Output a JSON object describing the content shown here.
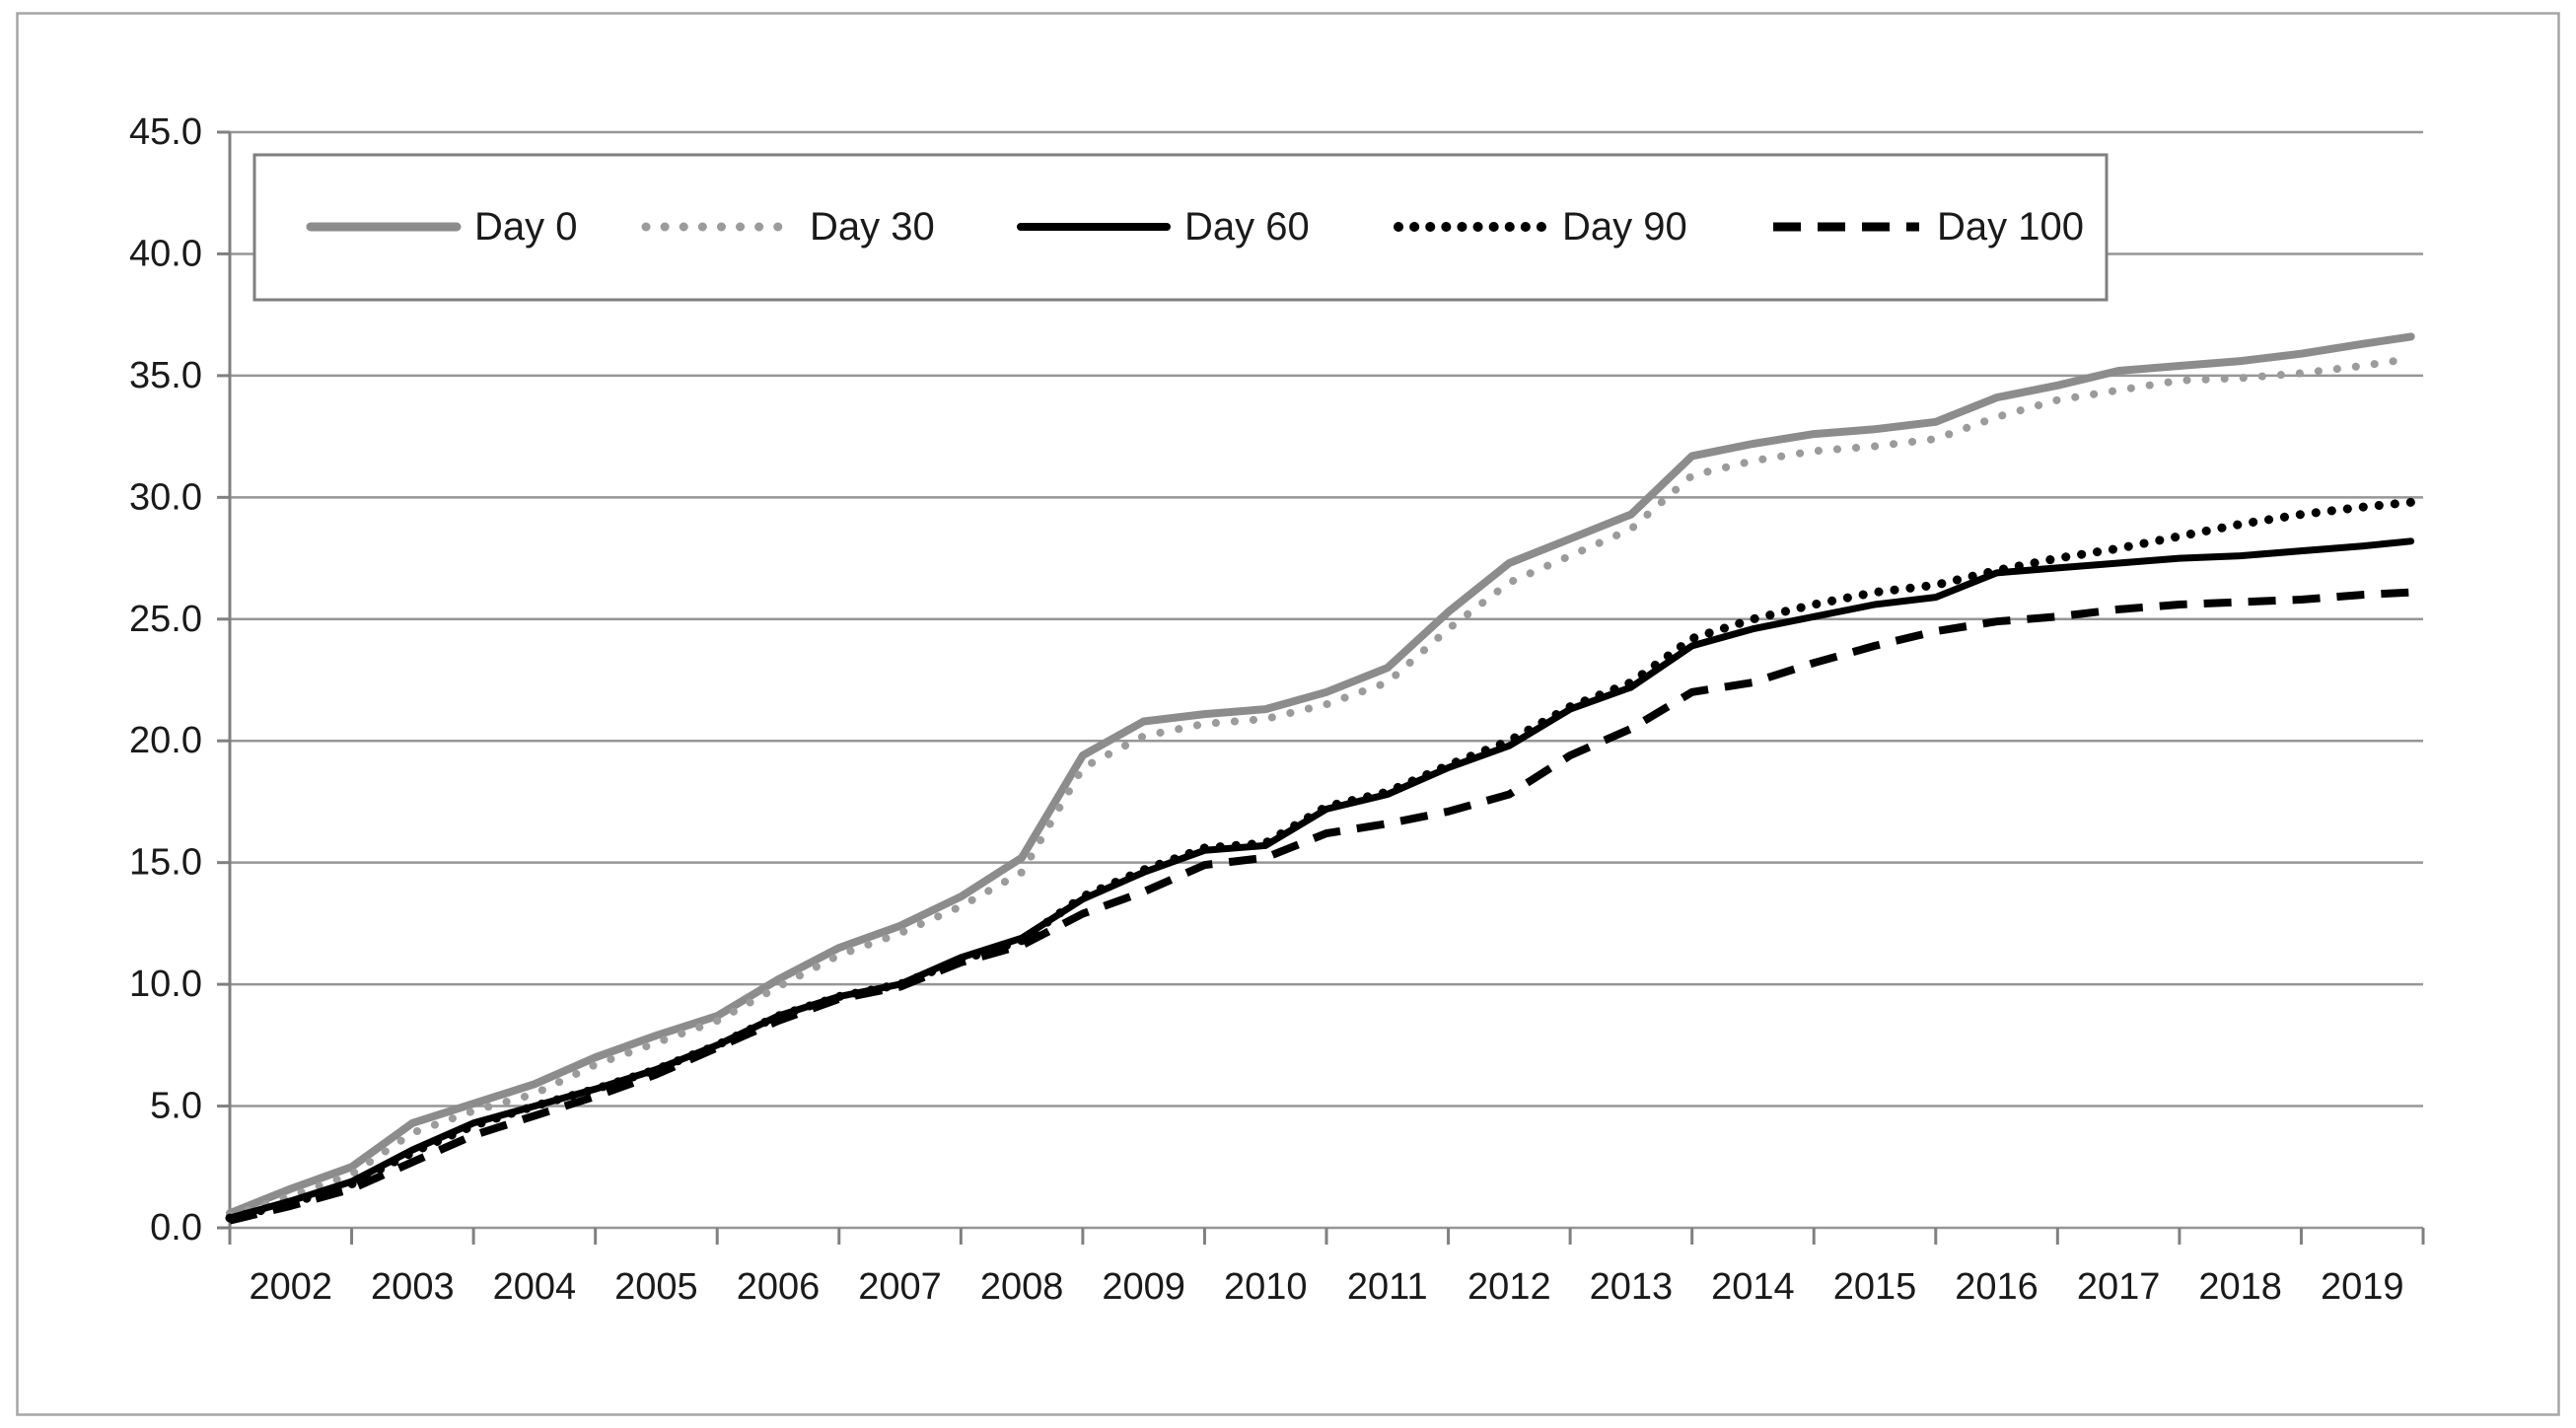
{
  "figure": {
    "background_color": "#ffffff",
    "border_color": "#a6a6a6",
    "gridline_color": "#969696",
    "axis_color": "#808080",
    "text_color": "#1a1a1a"
  },
  "legend": {
    "position": "top",
    "border_color": "#7f7f7f",
    "items": [
      {
        "label": "Day 0"
      },
      {
        "label": "Day 30"
      },
      {
        "label": "Day 60"
      },
      {
        "label": "Day 90"
      },
      {
        "label": "Day 100"
      }
    ]
  },
  "chart_data": {
    "type": "line",
    "title": "",
    "xlabel": "",
    "ylabel": "",
    "grid": "horizontal",
    "legend_position": "top",
    "ylim": [
      0,
      45
    ],
    "y_tick_step": 5,
    "y_tick_labels": [
      "0.0",
      "5.0",
      "10.0",
      "15.0",
      "20.0",
      "25.0",
      "30.0",
      "35.0",
      "40.0",
      "45.0"
    ],
    "x_tick_labels": [
      "2002",
      "2003",
      "2004",
      "2005",
      "2006",
      "2007",
      "2008",
      "2009",
      "2010",
      "2011",
      "2012",
      "2013",
      "2014",
      "2015",
      "2016",
      "2017",
      "2018",
      "2019"
    ],
    "xlim": [
      2002,
      2020
    ],
    "x": [
      2002,
      2002.5,
      2003,
      2003.5,
      2004,
      2004.5,
      2005,
      2005.5,
      2006,
      2006.5,
      2007,
      2007.5,
      2008,
      2008.5,
      2009,
      2009.5,
      2010,
      2010.5,
      2011,
      2011.5,
      2012,
      2012.5,
      2013,
      2013.5,
      2014,
      2014.5,
      2015,
      2015.5,
      2016,
      2016.5,
      2017,
      2017.5,
      2018,
      2018.5,
      2019,
      2019.5,
      2019.9
    ],
    "series": [
      {
        "name": "Day 0",
        "color": "#8c8c8c",
        "style": "solid",
        "width": 8,
        "values": [
          0.6,
          1.6,
          2.5,
          4.3,
          5.1,
          5.9,
          7.0,
          7.9,
          8.7,
          10.2,
          11.5,
          12.4,
          13.6,
          15.2,
          19.4,
          20.8,
          21.1,
          21.3,
          22.0,
          23.0,
          25.3,
          27.3,
          28.3,
          29.3,
          31.7,
          32.2,
          32.6,
          32.8,
          33.1,
          34.1,
          34.6,
          35.2,
          35.4,
          35.6,
          35.9,
          36.3,
          36.6
        ]
      },
      {
        "name": "Day 30",
        "color": "#9b9b9b",
        "style": "dotted",
        "width": 8,
        "values": [
          0.5,
          1.3,
          2.2,
          3.9,
          4.8,
          5.5,
          6.7,
          7.6,
          8.5,
          9.9,
          11.2,
          12.1,
          13.2,
          14.6,
          18.9,
          20.2,
          20.7,
          20.9,
          21.5,
          22.4,
          24.6,
          26.5,
          27.6,
          28.7,
          30.9,
          31.5,
          31.9,
          32.1,
          32.4,
          33.3,
          34.0,
          34.4,
          34.8,
          34.9,
          35.1,
          35.4,
          35.7
        ]
      },
      {
        "name": "Day 60",
        "color": "#000000",
        "style": "solid",
        "width": 7,
        "values": [
          0.4,
          1.1,
          1.9,
          3.2,
          4.3,
          5.0,
          5.7,
          6.5,
          7.5,
          8.7,
          9.5,
          10.0,
          11.1,
          11.9,
          13.5,
          14.6,
          15.5,
          15.7,
          17.2,
          17.8,
          18.9,
          19.8,
          21.3,
          22.2,
          23.9,
          24.6,
          25.1,
          25.6,
          25.9,
          26.9,
          27.1,
          27.3,
          27.5,
          27.6,
          27.8,
          28.0,
          28.2
        ]
      },
      {
        "name": "Day 90",
        "color": "#000000",
        "style": "dotted",
        "width": 9,
        "values": [
          0.4,
          1.0,
          1.8,
          3.1,
          4.2,
          5.0,
          5.7,
          6.5,
          7.5,
          8.7,
          9.5,
          10.0,
          11.0,
          11.8,
          13.6,
          14.7,
          15.6,
          15.8,
          17.3,
          17.9,
          19.0,
          20.0,
          21.4,
          22.4,
          24.2,
          25.0,
          25.6,
          26.1,
          26.4,
          27.0,
          27.5,
          27.9,
          28.4,
          28.9,
          29.3,
          29.6,
          29.8
        ]
      },
      {
        "name": "Day 100",
        "color": "#000000",
        "style": "dashed",
        "width": 8,
        "values": [
          0.3,
          0.9,
          1.6,
          2.7,
          3.8,
          4.6,
          5.4,
          6.3,
          7.4,
          8.5,
          9.4,
          9.9,
          10.9,
          11.6,
          12.9,
          13.8,
          14.9,
          15.2,
          16.2,
          16.6,
          17.1,
          17.8,
          19.4,
          20.5,
          22.0,
          22.4,
          23.2,
          23.9,
          24.5,
          24.9,
          25.1,
          25.4,
          25.6,
          25.7,
          25.8,
          26.0,
          26.1
        ]
      }
    ]
  }
}
